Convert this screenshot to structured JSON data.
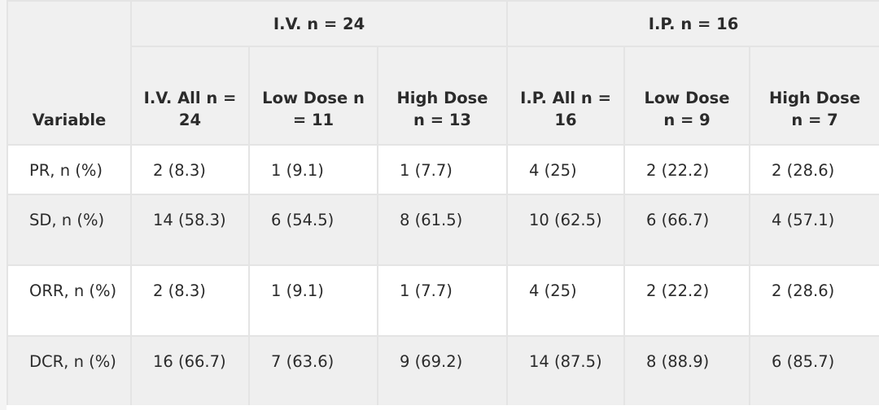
{
  "header": {
    "variable": "Variable",
    "groups": [
      "I.V. n = 24",
      "I.P. n = 16"
    ],
    "columns": [
      "I.V. All n = 24",
      "Low Dose n = 11",
      "High Dose n = 13",
      "I.P. All n = 16",
      "Low Dose n = 9",
      "High Dose n = 7"
    ]
  },
  "rows": [
    {
      "label": "PR, n (%)",
      "values": [
        "2 (8.3)",
        "1 (9.1)",
        "1 (7.7)",
        "4 (25)",
        "2 (22.2)",
        "2 (28.6)"
      ]
    },
    {
      "label": "SD, n (%)",
      "values": [
        "14 (58.3)",
        "6 (54.5)",
        "8 (61.5)",
        "10 (62.5)",
        "6 (66.7)",
        "4 (57.1)"
      ]
    },
    {
      "label": "ORR, n (%)",
      "values": [
        "2 (8.3)",
        "1 (9.1)",
        "1 (7.7)",
        "4 (25)",
        "2 (22.2)",
        "2 (28.6)"
      ]
    },
    {
      "label": "DCR, n (%)",
      "values": [
        "16 (66.7)",
        "7 (63.6)",
        "9 (69.2)",
        "14 (87.5)",
        "8 (88.9)",
        "6 (85.7)"
      ]
    }
  ]
}
